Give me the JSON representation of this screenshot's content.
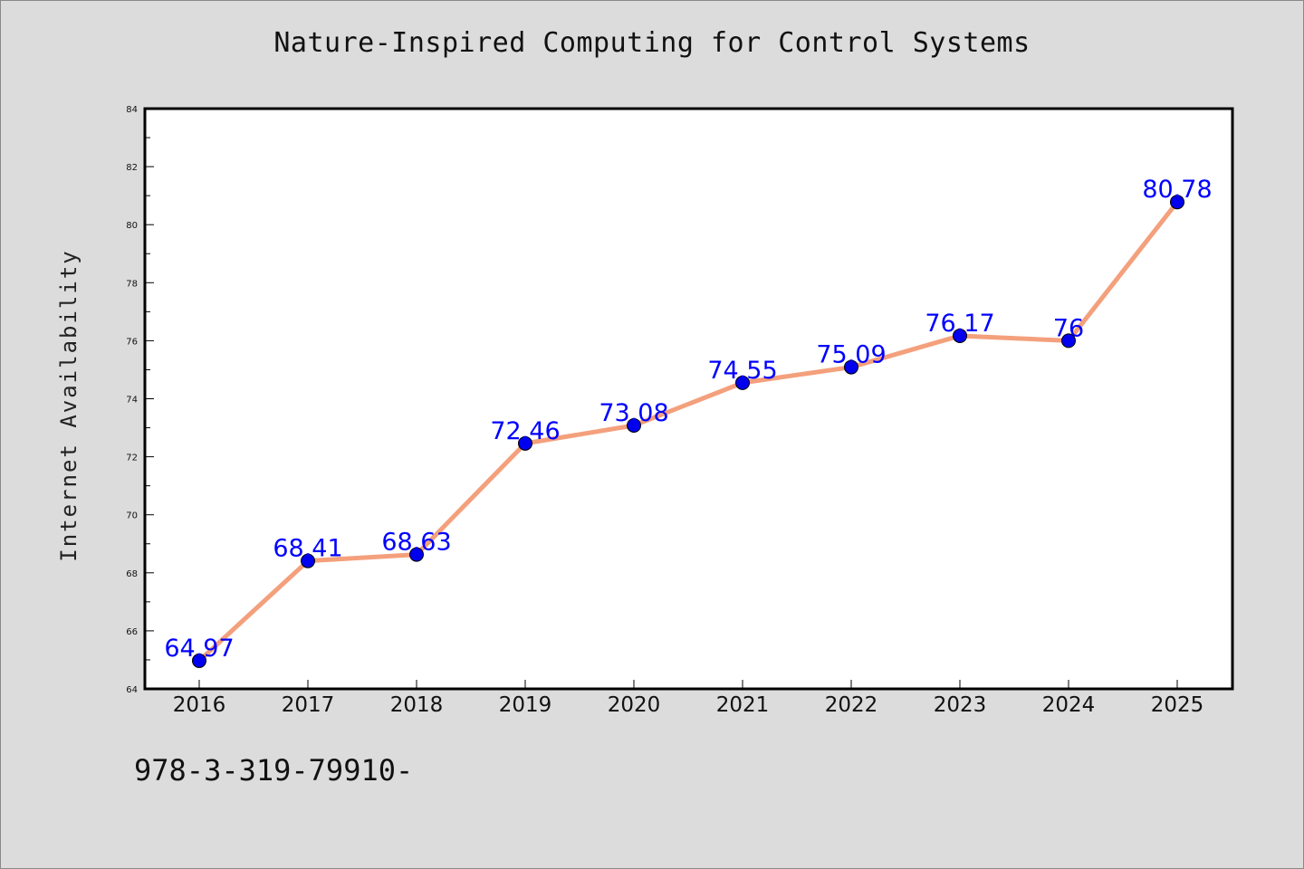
{
  "chart_data": {
    "type": "line",
    "title": "Nature-Inspired Computing for Control Systems",
    "xlabel": "",
    "ylabel": "Internet Availability",
    "categories": [
      "2016",
      "2017",
      "2018",
      "2019",
      "2020",
      "2021",
      "2022",
      "2023",
      "2024",
      "2025"
    ],
    "values": [
      64.97,
      68.41,
      68.63,
      72.46,
      73.08,
      74.55,
      75.09,
      76.17,
      76,
      80.78
    ],
    "data_labels": [
      "64.97",
      "68.41",
      "68.63",
      "72.46",
      "73.08",
      "74.55",
      "75.09",
      "76.17",
      "76",
      "80.78"
    ],
    "ylim": [
      64,
      84
    ],
    "yticks": [
      "64",
      "66",
      "68",
      "70",
      "72",
      "74",
      "76",
      "78",
      "80",
      "82",
      "84"
    ],
    "grid": false,
    "legend": "none",
    "colors": {
      "line": "#f4a07c",
      "marker": "#0000ee",
      "data_label": "#0000ff",
      "background": "#dcdcdc",
      "plot_background": "#ffffff"
    }
  },
  "footer": {
    "code": "978-3-319-79910-"
  }
}
